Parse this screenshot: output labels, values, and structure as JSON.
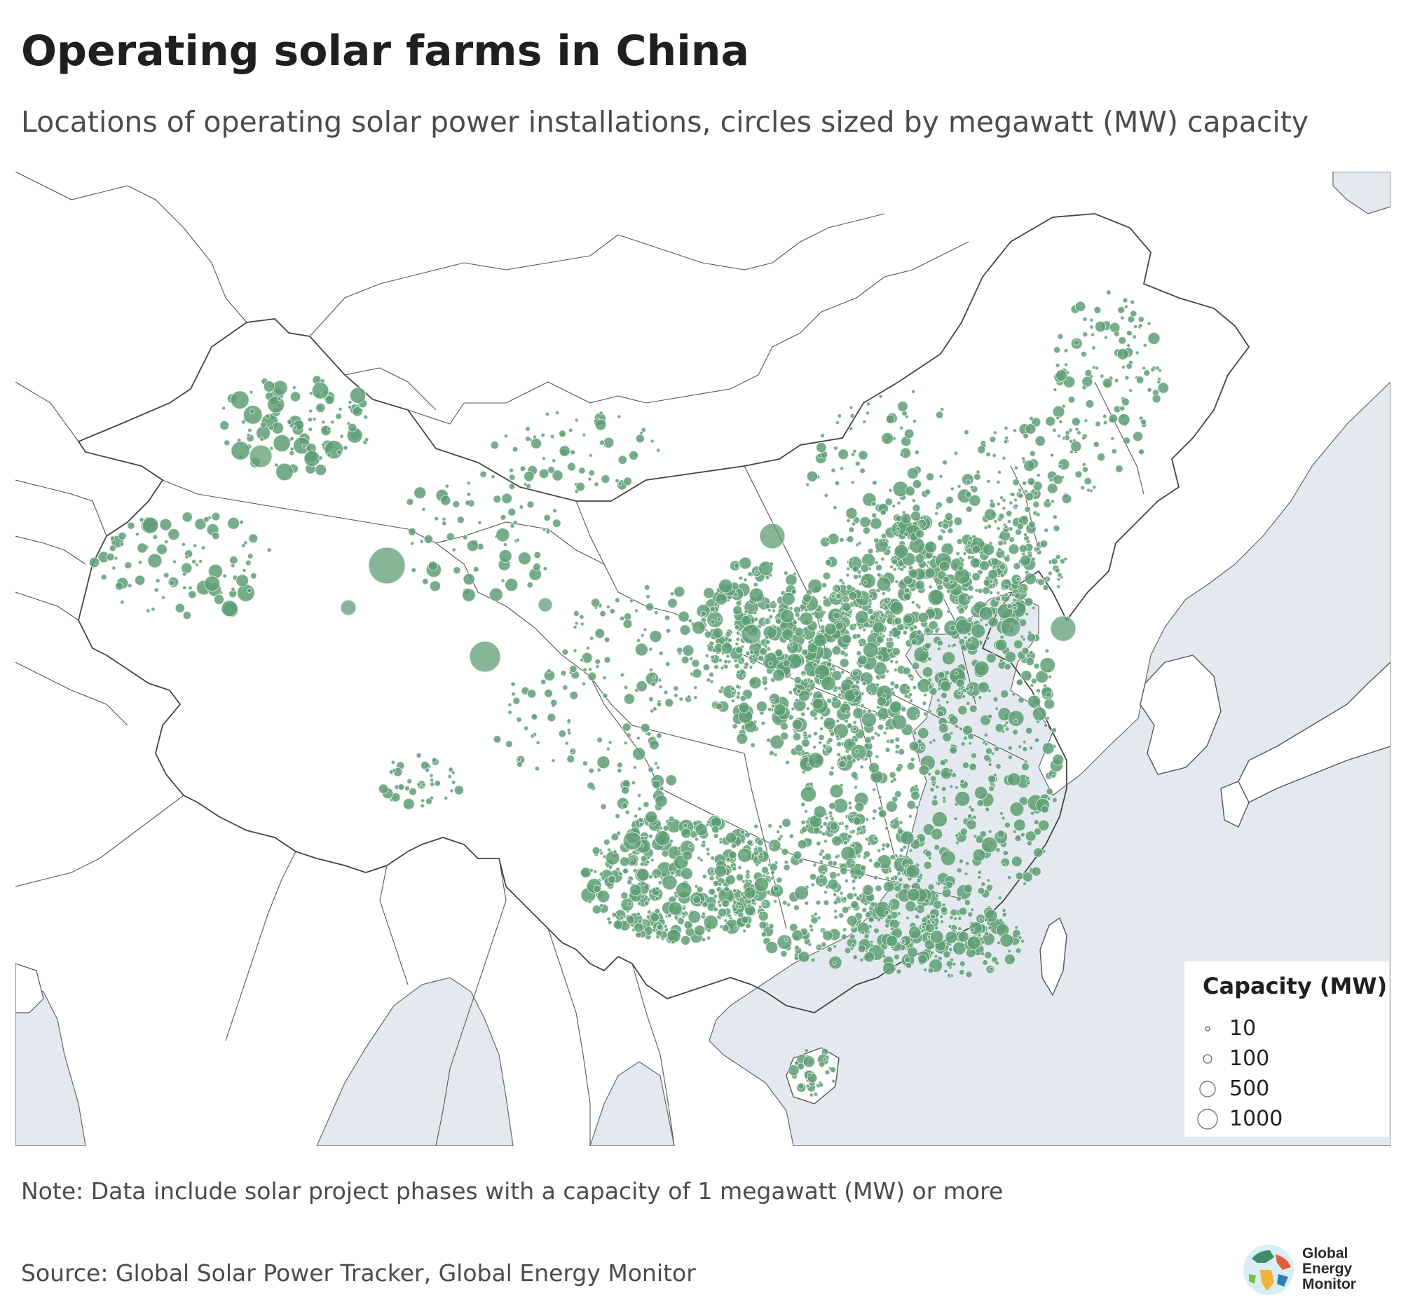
{
  "header": {
    "title": "Operating solar farms in China",
    "subtitle": "Locations of operating solar power installations, circles sized by megawatt (MW) capacity"
  },
  "legend": {
    "title": "Capacity (MW)",
    "items": [
      {
        "label": "10",
        "value": 10
      },
      {
        "label": "100",
        "value": 100
      },
      {
        "label": "500",
        "value": 500
      },
      {
        "label": "1000",
        "value": 1000
      }
    ]
  },
  "footer": {
    "note": "Note: Data include solar project phases with a capacity of 1 megawatt (MW) or more",
    "source": "Source: Global Solar Power Tracker, Global Energy Monitor"
  },
  "logo": {
    "line1": "Global",
    "line2": "Energy",
    "line3": "Monitor"
  },
  "colors": {
    "marker": "#5e9e74",
    "marker_stroke": "#e9f3ec",
    "sea": "#e4e9f0",
    "land": "#ffffff",
    "border": "#555555"
  }
}
